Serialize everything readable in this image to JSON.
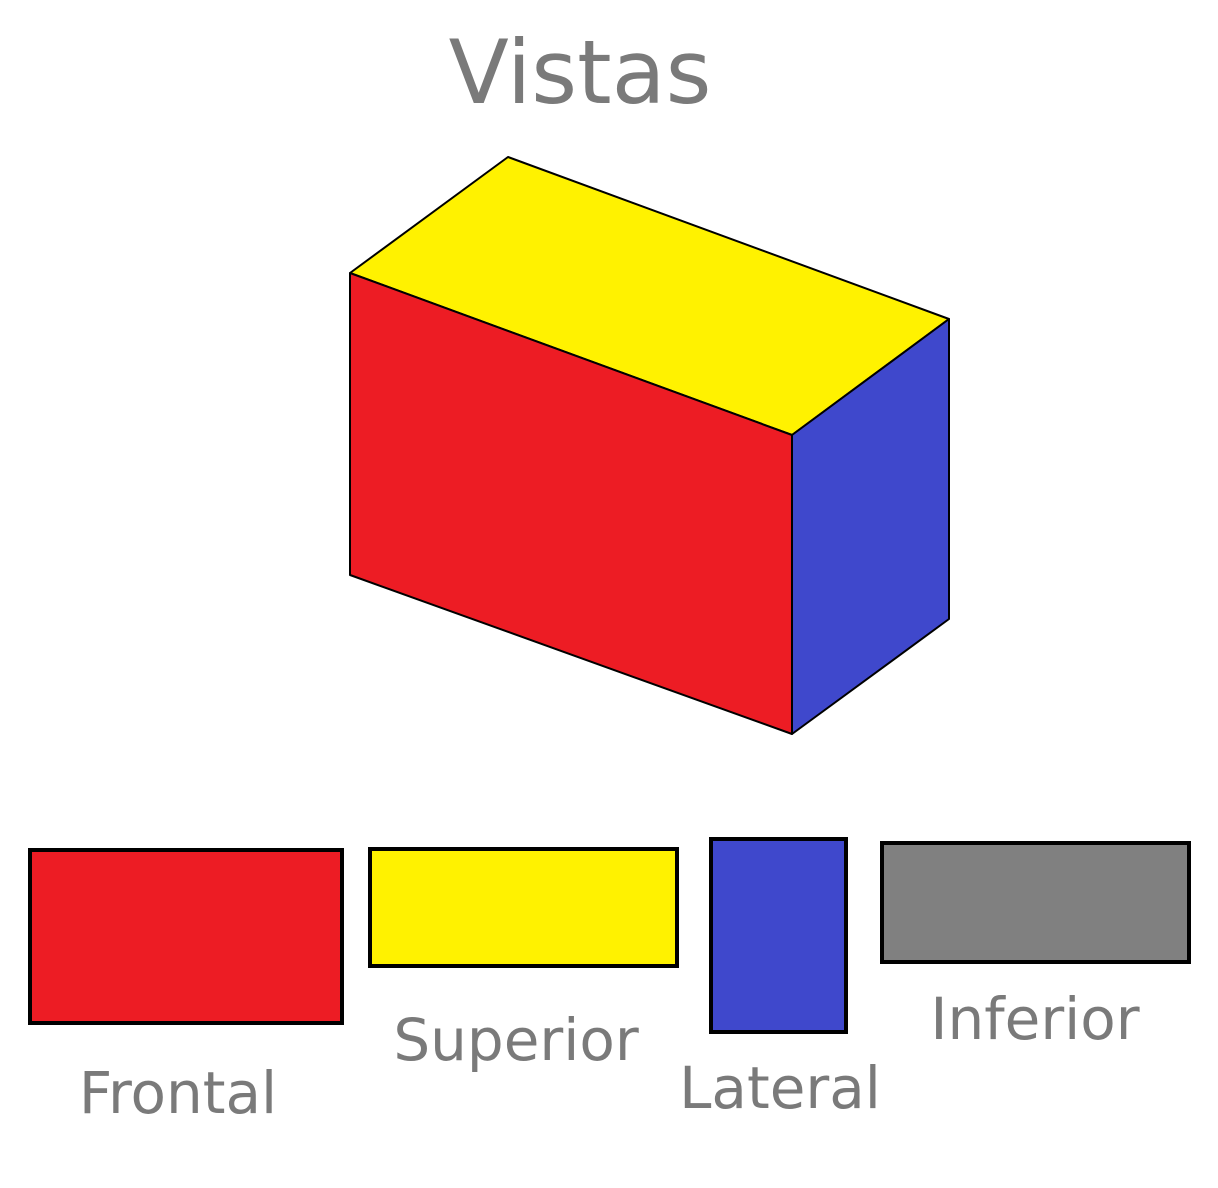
{
  "title": "Vistas",
  "box": {
    "faces": [
      {
        "name": "front",
        "color": "#ed1c24"
      },
      {
        "name": "top",
        "color": "#fff200"
      },
      {
        "name": "side",
        "color": "#3f48cc"
      }
    ]
  },
  "views": [
    {
      "label": "Frontal",
      "color": "#ed1c24"
    },
    {
      "label": "Superior",
      "color": "#fff200"
    },
    {
      "label": "Lateral",
      "color": "#3f48cc"
    },
    {
      "label": "Inferior",
      "color": "#808080"
    }
  ]
}
